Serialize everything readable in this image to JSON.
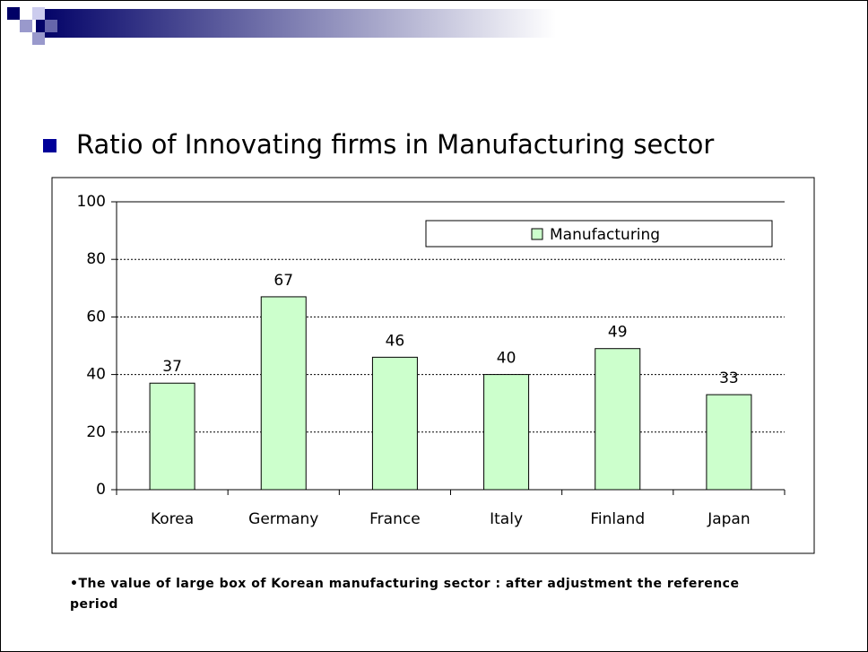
{
  "chart_data": {
    "type": "bar",
    "title": "Ratio of Innovating firms in Manufacturing sector",
    "categories": [
      "Korea",
      "Germany",
      "France",
      "Italy",
      "Finland",
      "Japan"
    ],
    "series": [
      {
        "name": "Manufacturing",
        "color": "#ccffcc",
        "values": [
          37,
          67,
          46,
          40,
          49,
          33
        ]
      }
    ],
    "ylim": [
      0,
      100
    ],
    "yticks": [
      0,
      20,
      40,
      60,
      80,
      100
    ],
    "grid": true,
    "legend": "top-right",
    "footnote": "•The value of large box of Korean manufacturing sector : after adjustment the reference period"
  }
}
